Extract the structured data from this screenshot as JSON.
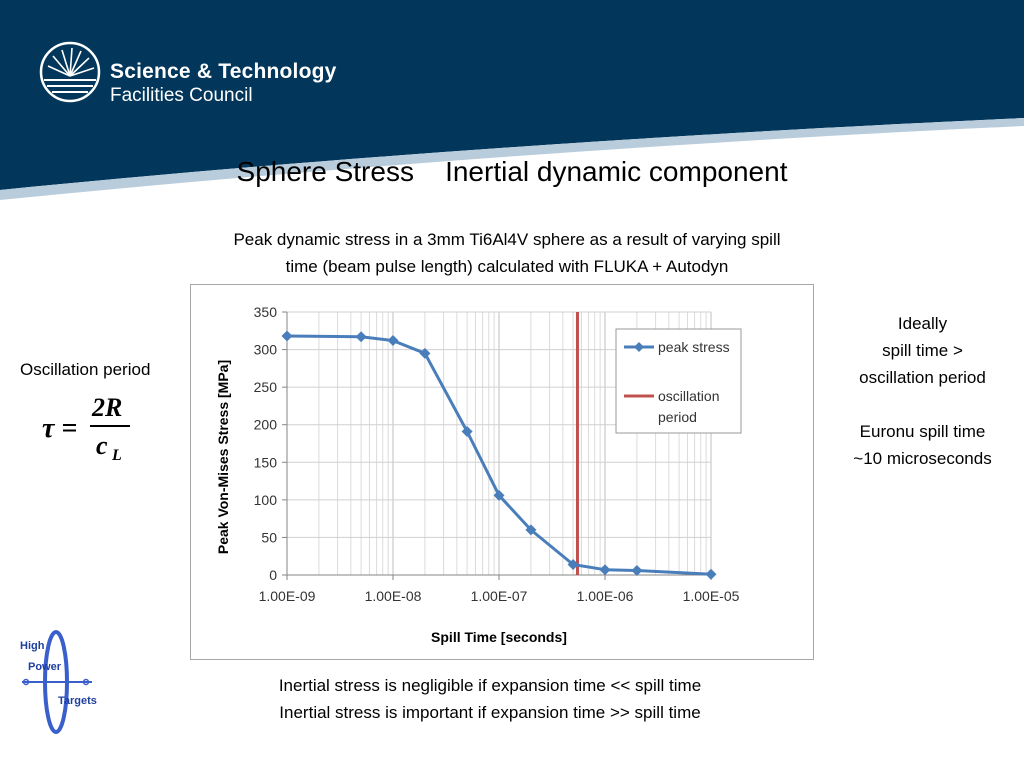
{
  "header": {
    "org_line1": "Science & Technology",
    "org_line2": "Facilities Council",
    "bg_color": "#02375b",
    "curve_color": "#b9ccdb"
  },
  "slide": {
    "title": "Sphere Stress    Inertial dynamic component",
    "subtitle_lines": [
      "Peak dynamic stress in a 3mm Ti6Al4V sphere as a result of varying spill",
      "time (beam pulse length) calculated with FLUKA + Autodyn"
    ]
  },
  "left_note": {
    "label": "Oscillation period",
    "formula_lhs": "τ =",
    "formula_num": "2R",
    "formula_den_main": "c",
    "formula_den_sub": "L"
  },
  "right_note": {
    "lines": [
      "Ideally",
      "spill time >",
      "oscillation period",
      "",
      "Euronu spill time",
      "~10 microseconds"
    ]
  },
  "bottom_note": {
    "lines": [
      "Inertial stress is negligible if expansion time << spill time",
      "Inertial stress is important if expansion time >> spill time"
    ]
  },
  "logo": {
    "line1": "High",
    "line2": "Power",
    "line3": "Targets"
  },
  "chart_data": {
    "type": "scatter",
    "title": "",
    "xlabel": "Spill Time [seconds]",
    "ylabel": "Peak Von-Mises Stress [MPa]",
    "x_scale": "log",
    "xlim": [
      1e-09,
      1e-05
    ],
    "ylim": [
      0,
      350
    ],
    "y_ticks": [
      0,
      50,
      100,
      150,
      200,
      250,
      300,
      350
    ],
    "x_tick_labels": [
      "1.00E-09",
      "1.00E-08",
      "1.00E-07",
      "1.00E-06",
      "1.00E-05"
    ],
    "grid": true,
    "legend_position": "top-right",
    "series": [
      {
        "name": "peak stress",
        "color": "#4a7ebb",
        "marker": "diamond",
        "x": [
          1e-09,
          5e-09,
          1e-08,
          2e-08,
          5e-08,
          1e-07,
          2e-07,
          5e-07,
          1e-06,
          2e-06,
          1e-05
        ],
        "y": [
          318,
          317,
          312,
          295,
          191,
          106,
          60,
          14,
          7,
          6,
          1
        ]
      }
    ],
    "vertical_lines": [
      {
        "name": "oscillation period",
        "x": 5.5e-07,
        "color": "#c0504d"
      }
    ]
  }
}
